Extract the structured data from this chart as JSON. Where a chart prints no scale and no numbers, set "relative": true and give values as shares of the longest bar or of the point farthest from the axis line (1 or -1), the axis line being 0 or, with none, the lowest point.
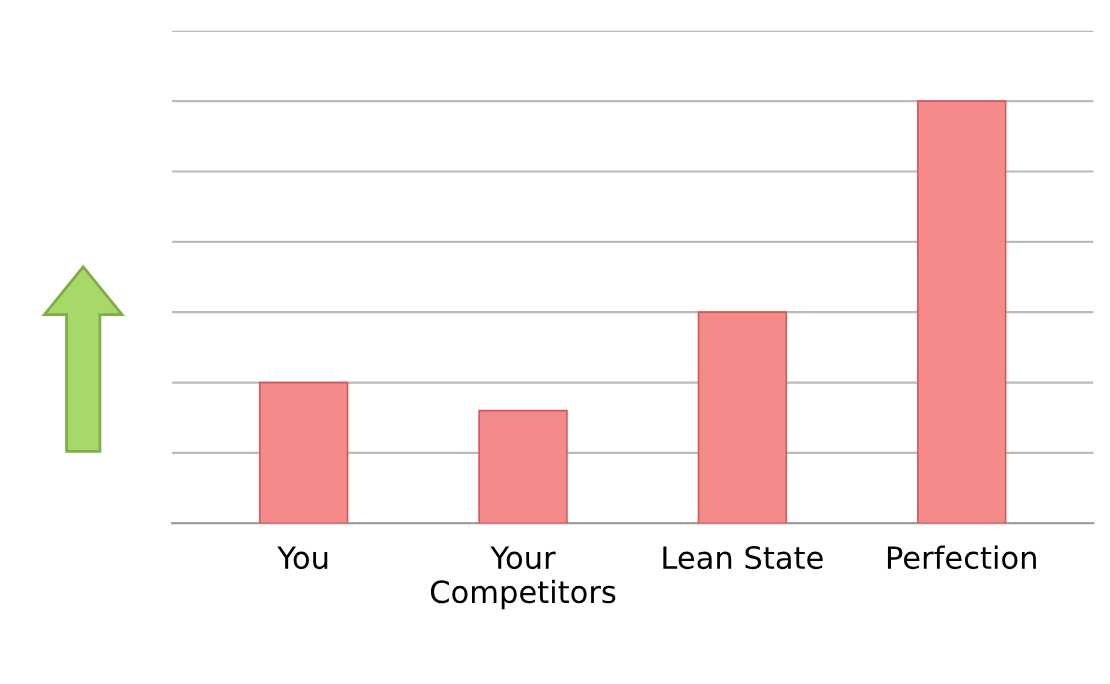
{
  "chart_data": {
    "type": "bar",
    "relative": true,
    "categories": [
      "You",
      "Your\nCompetitors",
      "Lean State",
      "Perfection"
    ],
    "values": [
      0.333,
      0.267,
      0.5,
      1
    ],
    "color": "#f48a8a",
    "grid": "y"
  }
}
